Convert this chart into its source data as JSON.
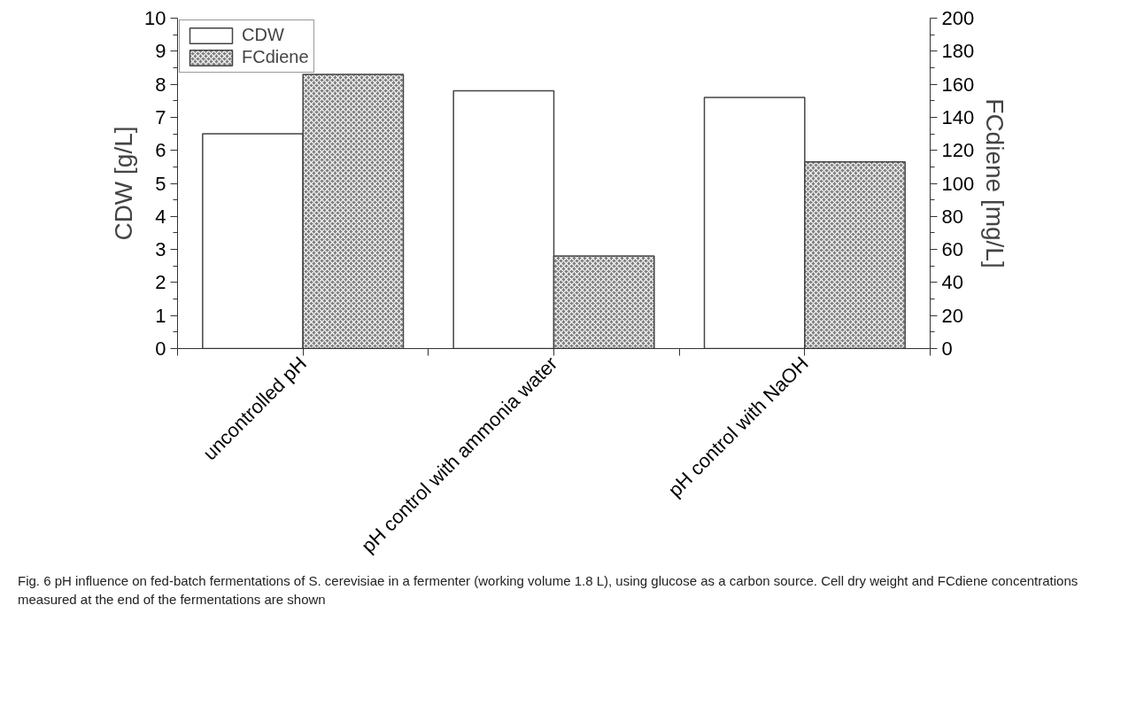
{
  "chart_data": {
    "type": "bar",
    "categories": [
      "uncontrolled pH",
      "pH control with ammonia water",
      "pH control with NaOH"
    ],
    "series": [
      {
        "name": "CDW",
        "color": "#ffffff",
        "values": [
          6.5,
          7.8,
          7.6
        ]
      },
      {
        "name": "FCdiene",
        "color": "#7f7f7f",
        "values": [
          166,
          56,
          113
        ],
        "axis": "y2"
      }
    ],
    "ylabel": "CDW [g/L]",
    "y2label": "FCdiene [mg/L]",
    "ylim": [
      0,
      10
    ],
    "yticks": [
      0,
      1,
      2,
      3,
      4,
      5,
      6,
      7,
      8,
      9,
      10
    ],
    "y2lim": [
      0,
      200
    ],
    "y2ticks": [
      0,
      20,
      40,
      60,
      80,
      100,
      120,
      140,
      160,
      180,
      200
    ],
    "legend": "top left",
    "grid": false,
    "annotations": [
      "Fig. 6  pH influence on fed-batch fermentations of S. cerevisiae in a fermenter (working volume 1.8 L), using glucose as a carbon source. Cell dry weight and FCdiene concentrations measured at the end of the fermentations are shown"
    ]
  }
}
